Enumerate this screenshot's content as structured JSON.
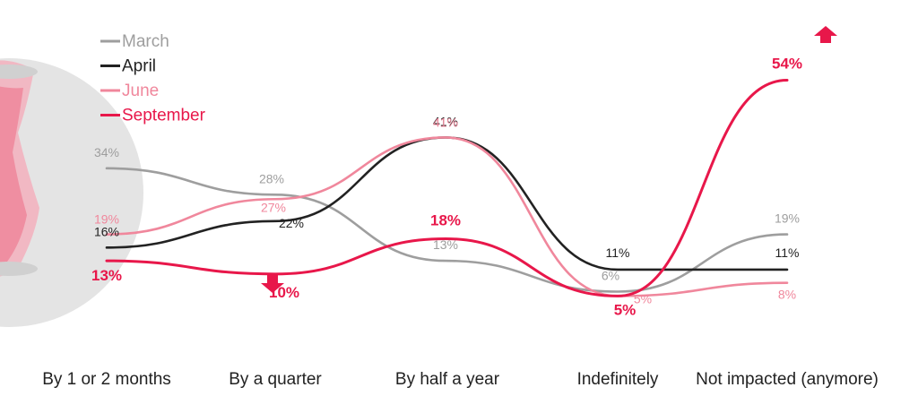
{
  "chart_data": {
    "type": "line",
    "categories": [
      "By 1 or 2 months",
      "By a quarter",
      "By half a year",
      "Indefinitely",
      "Not impacted (anymore)"
    ],
    "series": [
      {
        "name": "March",
        "color": "#9e9e9e",
        "values": [
          34,
          28,
          13,
          6,
          19
        ]
      },
      {
        "name": "April",
        "color": "#222222",
        "values": [
          16,
          22,
          41,
          11,
          11
        ]
      },
      {
        "name": "June",
        "color": "#f0879c",
        "values": [
          19,
          27,
          41,
          5,
          8
        ]
      },
      {
        "name": "September",
        "color": "#e8174a",
        "values": [
          13,
          10,
          18,
          5,
          54
        ]
      }
    ],
    "ylim": [
      0,
      60
    ],
    "legend_position": "top-left",
    "markers": [
      {
        "series": "September",
        "category": "Not impacted (anymore)",
        "direction": "up",
        "icon": "arrow-up-icon"
      },
      {
        "series": "September",
        "category": "By a quarter",
        "direction": "down",
        "icon": "arrow-down-icon"
      }
    ]
  }
}
